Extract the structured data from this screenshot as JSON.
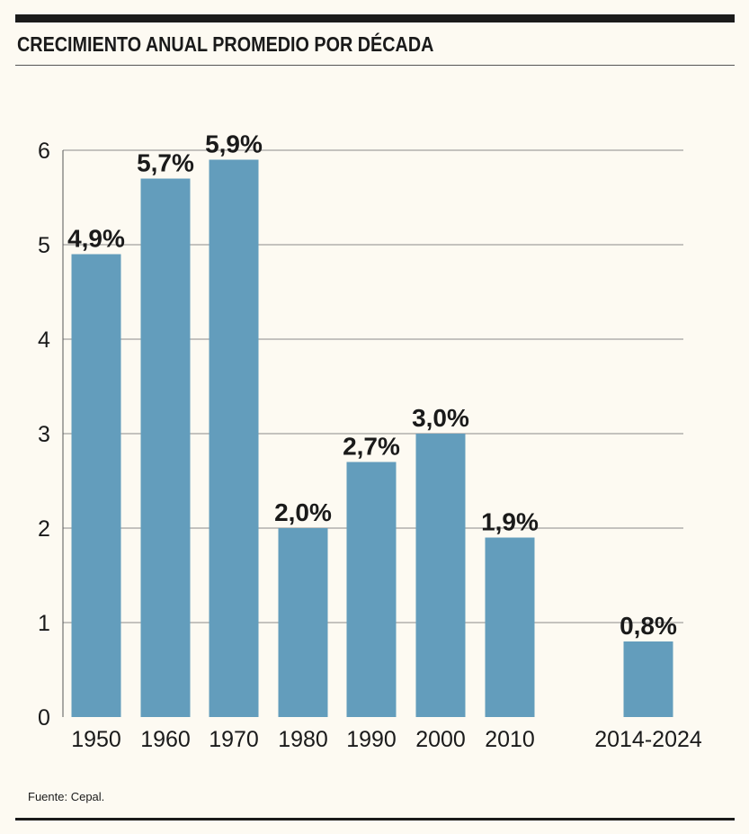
{
  "chart_data": {
    "type": "bar",
    "title": "CRECIMIENTO ANUAL PROMEDIO POR DÉCADA",
    "categories": [
      "1950",
      "1960",
      "1970",
      "1980",
      "1990",
      "2000",
      "2010",
      "2014-2024"
    ],
    "values": [
      4.9,
      5.7,
      5.9,
      2.0,
      2.7,
      3.0,
      1.9,
      0.8
    ],
    "data_labels": [
      "4,9%",
      "5,7%",
      "5,9%",
      "2,0%",
      "2,7%",
      "3,0%",
      "1,9%",
      "0,8%"
    ],
    "yticks": [
      "0",
      "1",
      "2",
      "3",
      "4",
      "5",
      "6"
    ],
    "ylim": [
      0,
      6
    ],
    "xlabel": "",
    "ylabel": "",
    "grid": true,
    "bar_color": "#639dbc",
    "source": "Fuente: Cepal."
  }
}
